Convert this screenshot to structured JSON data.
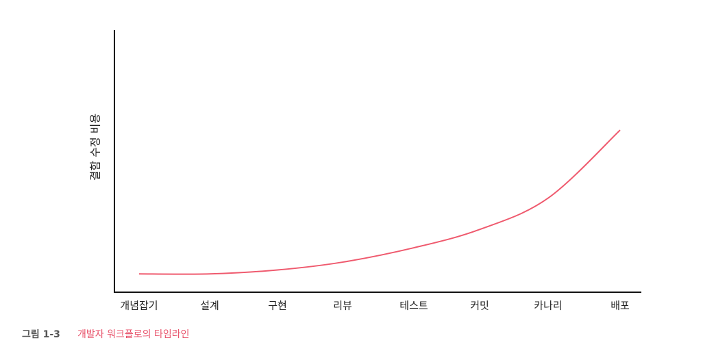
{
  "chart_data": {
    "type": "line",
    "y_label": "결함 수정 비용",
    "categories": [
      "개념잡기",
      "설계",
      "구현",
      "리뷰",
      "테스트",
      "커밋",
      "카나리",
      "배포"
    ],
    "series": [
      {
        "color": "#ef5a6e",
        "values": [
          7,
          7,
          8.5,
          11.5,
          17,
          24,
          36,
          62
        ]
      }
    ],
    "ylim": [
      0,
      100
    ]
  },
  "caption": {
    "label": "그림 1-3",
    "text": "개발자 워크플로의 타임라인"
  }
}
